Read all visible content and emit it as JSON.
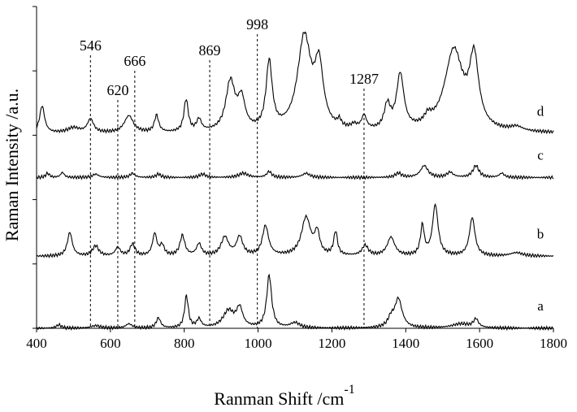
{
  "chart_data": {
    "type": "line",
    "xlabel": "Ranman Shift /cm",
    "xlabel_superscript": "-1",
    "ylabel": "Raman Intensity /a.u.",
    "xlim": [
      400,
      1800
    ],
    "x_ticks": [
      400,
      600,
      800,
      1000,
      1200,
      1400,
      1600,
      1800
    ],
    "y_ticks": 5,
    "y_tick_labels": false,
    "grid": false,
    "legend": "none",
    "colors": {
      "line": "#000000",
      "axis": "#000000",
      "marker_line": "#000000"
    },
    "marked_peaks": [
      {
        "label": "546",
        "x": 546
      },
      {
        "label": "620",
        "x": 620
      },
      {
        "label": "666",
        "x": 666
      },
      {
        "label": "869",
        "x": 869
      },
      {
        "label": "998",
        "x": 998
      },
      {
        "label": "1287",
        "x": 1287
      }
    ],
    "series": [
      {
        "name": "a",
        "baseline": 0.0,
        "peaks": [
          [
            460,
            0.04,
            8
          ],
          [
            560,
            0.03,
            15
          ],
          [
            650,
            0.05,
            10
          ],
          [
            730,
            0.12,
            7
          ],
          [
            806,
            0.38,
            6
          ],
          [
            840,
            0.1,
            7
          ],
          [
            920,
            0.2,
            18
          ],
          [
            950,
            0.22,
            10
          ],
          [
            1030,
            0.62,
            8
          ],
          [
            1100,
            0.06,
            15
          ],
          [
            1380,
            0.34,
            12
          ],
          [
            1360,
            0.1,
            10
          ],
          [
            1550,
            0.05,
            30
          ],
          [
            1590,
            0.1,
            8
          ]
        ]
      },
      {
        "name": "b",
        "baseline": 0.85,
        "peaks": [
          [
            490,
            0.28,
            8
          ],
          [
            560,
            0.12,
            10
          ],
          [
            620,
            0.1,
            8
          ],
          [
            660,
            0.14,
            8
          ],
          [
            720,
            0.26,
            7
          ],
          [
            740,
            0.12,
            7
          ],
          [
            795,
            0.24,
            8
          ],
          [
            840,
            0.14,
            8
          ],
          [
            910,
            0.22,
            12
          ],
          [
            950,
            0.22,
            10
          ],
          [
            1020,
            0.35,
            10
          ],
          [
            1130,
            0.45,
            15
          ],
          [
            1160,
            0.25,
            8
          ],
          [
            1210,
            0.28,
            6
          ],
          [
            1290,
            0.12,
            10
          ],
          [
            1360,
            0.22,
            12
          ],
          [
            1445,
            0.35,
            6
          ],
          [
            1480,
            0.6,
            9
          ],
          [
            1580,
            0.45,
            9
          ],
          [
            1700,
            0.04,
            20
          ]
        ]
      },
      {
        "name": "c",
        "baseline": 1.78,
        "peaks": [
          [
            430,
            0.05,
            6
          ],
          [
            470,
            0.06,
            6
          ],
          [
            560,
            0.04,
            10
          ],
          [
            660,
            0.05,
            8
          ],
          [
            730,
            0.04,
            8
          ],
          [
            850,
            0.04,
            10
          ],
          [
            960,
            0.05,
            15
          ],
          [
            1030,
            0.07,
            8
          ],
          [
            1130,
            0.05,
            12
          ],
          [
            1380,
            0.05,
            10
          ],
          [
            1450,
            0.14,
            12
          ],
          [
            1520,
            0.06,
            10
          ],
          [
            1590,
            0.14,
            10
          ],
          [
            1660,
            0.05,
            8
          ]
        ]
      },
      {
        "name": "d",
        "baseline": 2.3,
        "peaks": [
          [
            415,
            0.32,
            8
          ],
          [
            500,
            0.06,
            20
          ],
          [
            546,
            0.16,
            10
          ],
          [
            650,
            0.2,
            15
          ],
          [
            725,
            0.2,
            7
          ],
          [
            805,
            0.38,
            7
          ],
          [
            840,
            0.14,
            8
          ],
          [
            925,
            0.58,
            15
          ],
          [
            955,
            0.35,
            12
          ],
          [
            1030,
            0.8,
            10
          ],
          [
            1125,
            1.1,
            22
          ],
          [
            1165,
            0.7,
            14
          ],
          [
            1220,
            0.08,
            6
          ],
          [
            1260,
            0.05,
            10
          ],
          [
            1287,
            0.16,
            8
          ],
          [
            1350,
            0.28,
            10
          ],
          [
            1385,
            0.65,
            12
          ],
          [
            1460,
            0.1,
            12
          ],
          [
            1530,
            0.95,
            30
          ],
          [
            1585,
            0.8,
            15
          ],
          [
            1700,
            0.05,
            20
          ]
        ]
      }
    ]
  }
}
